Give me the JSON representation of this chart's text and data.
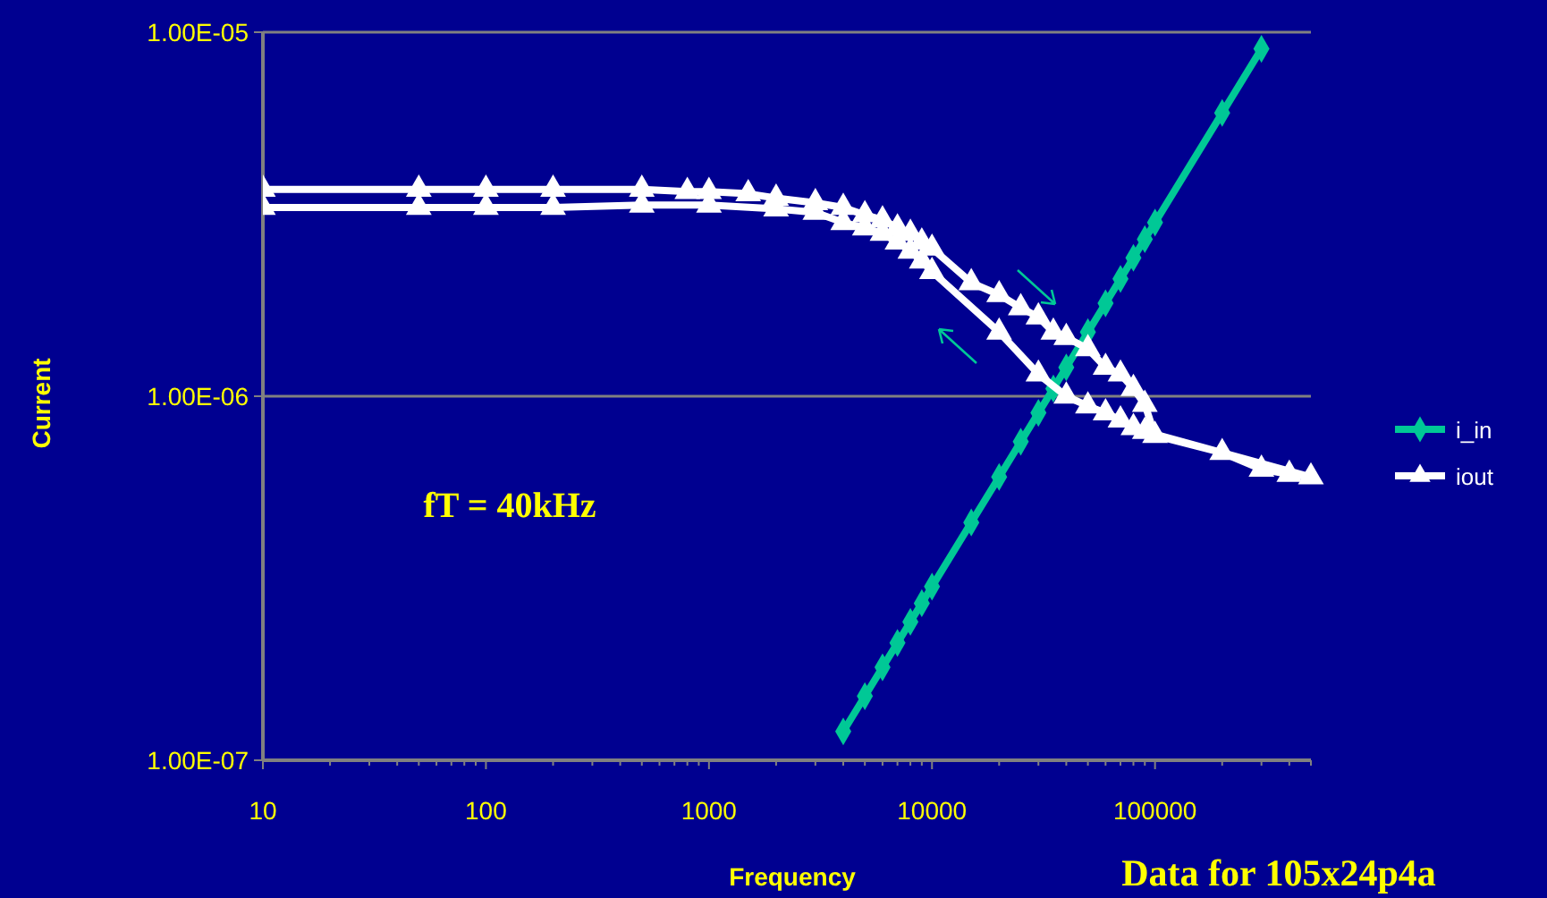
{
  "chart_data": {
    "type": "line",
    "xlabel": "Frequency",
    "ylabel": "Current",
    "log": "xy",
    "grid": "y",
    "legend": "right",
    "xlim": [
      10,
      500000
    ],
    "ylim": [
      1e-07,
      1e-05
    ],
    "xticks": [
      10,
      {
        "value": 20,
        "label": null
      },
      {
        "value": 30,
        "label": null
      },
      {
        "value": 40,
        "label": null
      },
      {
        "value": 50,
        "label": null
      },
      {
        "value": 60,
        "label": null
      },
      {
        "value": 70,
        "label": null
      },
      {
        "value": 80,
        "label": null
      },
      {
        "value": 90,
        "label": null
      },
      100,
      {
        "value": 200,
        "label": null
      },
      {
        "value": 300,
        "label": null
      },
      {
        "value": 400,
        "label": null
      },
      {
        "value": 500,
        "label": null
      },
      {
        "value": 600,
        "label": null
      },
      {
        "value": 700,
        "label": null
      },
      {
        "value": 800,
        "label": null
      },
      {
        "value": 900,
        "label": null
      },
      1000,
      {
        "value": 2000,
        "label": null
      },
      {
        "value": 3000,
        "label": null
      },
      {
        "value": 4000,
        "label": null
      },
      {
        "value": 5000,
        "label": null
      },
      {
        "value": 6000,
        "label": null
      },
      {
        "value": 7000,
        "label": null
      },
      {
        "value": 8000,
        "label": null
      },
      {
        "value": 9000,
        "label": null
      },
      10000,
      {
        "value": 20000,
        "label": null
      },
      {
        "value": 30000,
        "label": null
      },
      {
        "value": 40000,
        "label": null
      },
      {
        "value": 50000,
        "label": null
      },
      {
        "value": 60000,
        "label": null
      },
      {
        "value": 70000,
        "label": null
      },
      {
        "value": 80000,
        "label": null
      },
      {
        "value": 90000,
        "label": null
      },
      100000,
      {
        "value": 200000,
        "label": null
      },
      {
        "value": 300000,
        "label": null
      },
      {
        "value": 400000,
        "label": null
      },
      {
        "value": 500000,
        "label": null
      }
    ],
    "yticks": [
      {
        "value": 1e-07,
        "label": "1.00E-07"
      },
      {
        "value": 1e-06,
        "label": "1.00E-06"
      },
      {
        "value": 1e-05,
        "label": "1.00E-05"
      }
    ],
    "annotations": [
      "fT = 40kHz",
      "Data for 105x24p4a"
    ],
    "series": [
      {
        "name": "i_in",
        "color": "#00c896",
        "marker": "diamond",
        "x": [
          4000,
          5000,
          6000,
          7000,
          8000,
          9000,
          10000,
          15000,
          20000,
          25000,
          30000,
          35000,
          40000,
          50000,
          60000,
          70000,
          80000,
          90000,
          100000,
          200000,
          300000
        ],
        "values": [
          1.2e-07,
          1.5e-07,
          1.8e-07,
          2.1e-07,
          2.4e-07,
          2.7e-07,
          3e-07,
          4.5e-07,
          6e-07,
          7.5e-07,
          9e-07,
          1.05e-06,
          1.2e-06,
          1.5e-06,
          1.8e-06,
          2.1e-06,
          2.4e-06,
          2.7e-06,
          3e-06,
          6e-06,
          9e-06
        ]
      },
      {
        "name": "iout",
        "color": "#ffffff",
        "marker": "triangle",
        "x": [
          10,
          50,
          100,
          200,
          500,
          800,
          1000,
          1500,
          2000,
          3000,
          4000,
          5000,
          6000,
          7000,
          8000,
          9000,
          10000,
          15000,
          20000,
          25000,
          30000,
          35000,
          40000,
          50000,
          60000,
          70000,
          80000,
          90000,
          100000,
          200000,
          300000,
          400000,
          500000,
          90000,
          80000,
          70000,
          60000,
          50000,
          40000,
          30000,
          20000,
          10000,
          9000,
          8000,
          7000,
          6000,
          5000,
          4000,
          3000,
          2000,
          1000,
          500,
          200,
          100,
          50,
          10
        ],
        "values": [
          3.7e-06,
          3.7e-06,
          3.7e-06,
          3.7e-06,
          3.7e-06,
          3.65e-06,
          3.65e-06,
          3.6e-06,
          3.5e-06,
          3.4e-06,
          3.3e-06,
          3.15e-06,
          3.05e-06,
          2.9e-06,
          2.8e-06,
          2.65e-06,
          2.55e-06,
          2.05e-06,
          1.9e-06,
          1.75e-06,
          1.65e-06,
          1.5e-06,
          1.45e-06,
          1.35e-06,
          1.2e-06,
          1.15e-06,
          1.05e-06,
          9.5e-07,
          7.8e-07,
          7e-07,
          6.3e-07,
          6.1e-07,
          6e-07,
          8e-07,
          8.2e-07,
          8.6e-07,
          9e-07,
          9.4e-07,
          1e-06,
          1.15e-06,
          1.5e-06,
          2.2e-06,
          2.35e-06,
          2.5e-06,
          2.65e-06,
          2.8e-06,
          2.9e-06,
          3e-06,
          3.2e-06,
          3.27e-06,
          3.35e-06,
          3.35e-06,
          3.3e-06,
          3.3e-06,
          3.3e-06,
          3.3e-06
        ]
      }
    ]
  }
}
